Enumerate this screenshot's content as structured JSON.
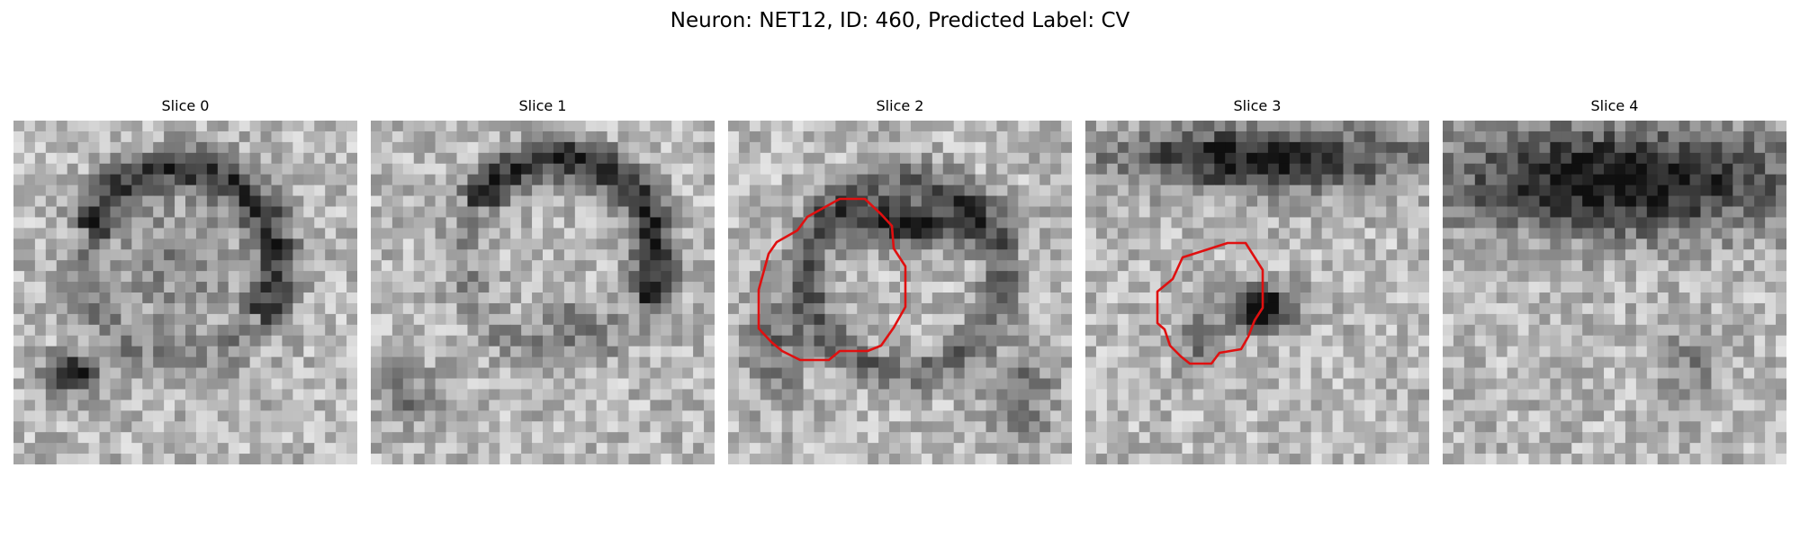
{
  "figure": {
    "title": "Neuron: NET12, ID: 460, Predicted Label: CV"
  },
  "panels": [
    {
      "title": "Slice 0",
      "has_contour": false
    },
    {
      "title": "Slice 1",
      "has_contour": false
    },
    {
      "title": "Slice 2",
      "has_contour": true
    },
    {
      "title": "Slice 3",
      "has_contour": true
    },
    {
      "title": "Slice 4",
      "has_contour": false
    }
  ],
  "colors": {
    "contour": "#e01010",
    "background": "#ffffff"
  }
}
